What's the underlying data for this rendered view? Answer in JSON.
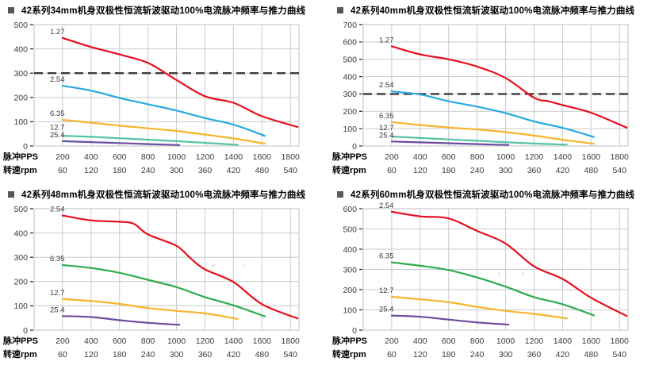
{
  "colors": {
    "red": "#e60f1e",
    "blue": "#29a9e1",
    "yellow": "#f7b52c",
    "teal": "#55c3a6",
    "green": "#2fab4d",
    "purple": "#6b4c9f",
    "grid": "#c9caca",
    "dashed": "#3e3a39",
    "axis_text": "#3a3a3a",
    "title_text": "#000000",
    "bullet": "#595757",
    "artifact": "#909090"
  },
  "axis": {
    "pps_label": "脉冲PPS",
    "rpm_label": "转速rpm",
    "pps_ticks": [
      200,
      400,
      600,
      800,
      1000,
      1200,
      1400,
      1600,
      1800
    ],
    "rpm_ticks": [
      60,
      120,
      180,
      240,
      300,
      360,
      420,
      480,
      540
    ]
  },
  "chart_data": [
    {
      "type": "line",
      "title": "42系列34mm机身双极性恒流斩波驱动100%电流脉冲频率与推力曲线",
      "xlabel": "脉冲PPS / 转速rpm",
      "ylabel": "",
      "ylim": [
        0,
        500
      ],
      "ytick_step": 100,
      "x_gridlines": [
        200,
        400,
        600,
        800,
        1000,
        1200,
        1400,
        1600,
        1800
      ],
      "dashed_line_y": 300,
      "grid": true,
      "legend_position": "curve-start-labels",
      "series": [
        {
          "name": "1.27",
          "color_key": "red",
          "x": [
            200,
            400,
            600,
            800,
            1000,
            1200,
            1400,
            1600,
            1850
          ],
          "y": [
            445,
            408,
            377,
            342,
            272,
            205,
            178,
            123,
            78
          ]
        },
        {
          "name": "2.54",
          "color_key": "blue",
          "x": [
            200,
            400,
            600,
            800,
            1000,
            1200,
            1400,
            1620
          ],
          "y": [
            248,
            228,
            198,
            172,
            146,
            115,
            88,
            42
          ]
        },
        {
          "name": "6.35",
          "color_key": "yellow",
          "x": [
            200,
            400,
            600,
            800,
            1000,
            1200,
            1400,
            1620
          ],
          "y": [
            108,
            96,
            84,
            73,
            62,
            47,
            31,
            10
          ]
        },
        {
          "name": "12.7",
          "color_key": "teal",
          "x": [
            200,
            400,
            600,
            800,
            1000,
            1200,
            1430
          ],
          "y": [
            42,
            38,
            32,
            26,
            20,
            13,
            5
          ]
        },
        {
          "name": "25.4",
          "color_key": "purple",
          "x": [
            200,
            400,
            600,
            800,
            1020
          ],
          "y": [
            20,
            16,
            12,
            8,
            4
          ]
        }
      ],
      "artifacts": [
        {
          "text": "+",
          "pps": 1285,
          "val": 303
        },
        {
          "text": "⊥",
          "pps": 1475,
          "val": 290
        }
      ]
    },
    {
      "type": "line",
      "title": "42系列40mm机身双极性恒流斩波驱动100%电流脉冲频率与推力曲线",
      "xlabel": "脉冲PPS / 转速rpm",
      "ylabel": "",
      "ylim": [
        0,
        700
      ],
      "ytick_step": 100,
      "x_gridlines": [
        200,
        400,
        600,
        800,
        1000,
        1200,
        1400,
        1600,
        1800
      ],
      "dashed_line_y": 300,
      "grid": true,
      "legend_position": "curve-start-labels",
      "series": [
        {
          "name": "1.27",
          "color_key": "red",
          "x": [
            200,
            400,
            600,
            800,
            1000,
            1200,
            1300,
            1400,
            1600,
            1850
          ],
          "y": [
            575,
            528,
            500,
            458,
            392,
            278,
            258,
            236,
            192,
            106
          ]
        },
        {
          "name": "2.54",
          "color_key": "blue",
          "x": [
            200,
            400,
            600,
            800,
            1000,
            1200,
            1400,
            1620
          ],
          "y": [
            315,
            297,
            258,
            227,
            190,
            142,
            105,
            52
          ]
        },
        {
          "name": "6.35",
          "color_key": "yellow",
          "x": [
            200,
            400,
            600,
            800,
            1000,
            1200,
            1400,
            1620
          ],
          "y": [
            138,
            121,
            107,
            95,
            80,
            60,
            36,
            13
          ]
        },
        {
          "name": "12.7",
          "color_key": "teal",
          "x": [
            200,
            400,
            600,
            800,
            1000,
            1200,
            1430
          ],
          "y": [
            55,
            46,
            38,
            30,
            22,
            14,
            8
          ]
        },
        {
          "name": "25.4",
          "color_key": "purple",
          "x": [
            200,
            400,
            600,
            800,
            1020
          ],
          "y": [
            26,
            21,
            16,
            11,
            6
          ]
        }
      ],
      "artifacts": [
        {
          "text": "~30(",
          "pps": 1210,
          "val": 268
        }
      ]
    },
    {
      "type": "line",
      "title": "42系列48mm机身双极性恒流斩波驱动100%电流脉冲频率与推力曲线",
      "xlabel": "脉冲PPS / 转速rpm",
      "ylabel": "",
      "ylim": [
        0,
        500
      ],
      "ytick_step": 100,
      "x_gridlines": [
        200,
        400,
        600,
        800,
        1000,
        1200,
        1400,
        1600,
        1800
      ],
      "dashed_line_y": null,
      "grid": true,
      "legend_position": "curve-start-labels",
      "series": [
        {
          "name": "2.54",
          "color_key": "red",
          "x": [
            200,
            400,
            600,
            700,
            800,
            1000,
            1100,
            1200,
            1400,
            1600,
            1850
          ],
          "y": [
            472,
            452,
            446,
            438,
            394,
            347,
            295,
            250,
            198,
            107,
            48
          ]
        },
        {
          "name": "6.35",
          "color_key": "green",
          "x": [
            200,
            400,
            600,
            800,
            1000,
            1200,
            1400,
            1620
          ],
          "y": [
            268,
            256,
            236,
            207,
            177,
            136,
            102,
            57
          ]
        },
        {
          "name": "12.7",
          "color_key": "yellow",
          "x": [
            200,
            400,
            600,
            800,
            1000,
            1200,
            1430
          ],
          "y": [
            128,
            120,
            108,
            91,
            79,
            69,
            46
          ]
        },
        {
          "name": "25.4",
          "color_key": "purple",
          "x": [
            200,
            400,
            600,
            800,
            1020
          ],
          "y": [
            58,
            54,
            41,
            30,
            22
          ]
        }
      ],
      "artifacts": [
        {
          "text": "⊿",
          "pps": 1259,
          "val": 262
        },
        {
          "text": "ı",
          "pps": 1468,
          "val": 262
        }
      ]
    },
    {
      "type": "line",
      "title": "42系列60mm机身双极性恒流斩波驱动100%电流脉冲频率与推力曲线",
      "xlabel": "脉冲PPS / 转速rpm",
      "ylabel": "",
      "ylim": [
        0,
        600
      ],
      "ytick_step": 100,
      "x_gridlines": [
        200,
        400,
        600,
        800,
        1000,
        1200,
        1400,
        1600,
        1800
      ],
      "dashed_line_y": null,
      "grid": true,
      "legend_position": "curve-start-labels",
      "series": [
        {
          "name": "2.54",
          "color_key": "red",
          "x": [
            200,
            400,
            600,
            800,
            1000,
            1200,
            1400,
            1600,
            1850
          ],
          "y": [
            585,
            562,
            552,
            490,
            428,
            315,
            253,
            160,
            70
          ]
        },
        {
          "name": "6.35",
          "color_key": "green",
          "x": [
            200,
            400,
            600,
            800,
            1000,
            1200,
            1400,
            1620
          ],
          "y": [
            335,
            318,
            297,
            260,
            215,
            163,
            128,
            73
          ]
        },
        {
          "name": "12.7",
          "color_key": "yellow",
          "x": [
            200,
            400,
            600,
            800,
            1000,
            1200,
            1430
          ],
          "y": [
            165,
            152,
            138,
            115,
            95,
            80,
            58
          ]
        },
        {
          "name": "25.4",
          "color_key": "purple",
          "x": [
            200,
            400,
            600,
            800,
            1020
          ],
          "y": [
            72,
            66,
            52,
            38,
            27
          ]
        }
      ],
      "artifacts": [
        {
          "text": "з",
          "pps": 955,
          "val": 270
        },
        {
          "text": "⊧",
          "pps": 1125,
          "val": 268
        }
      ]
    }
  ]
}
